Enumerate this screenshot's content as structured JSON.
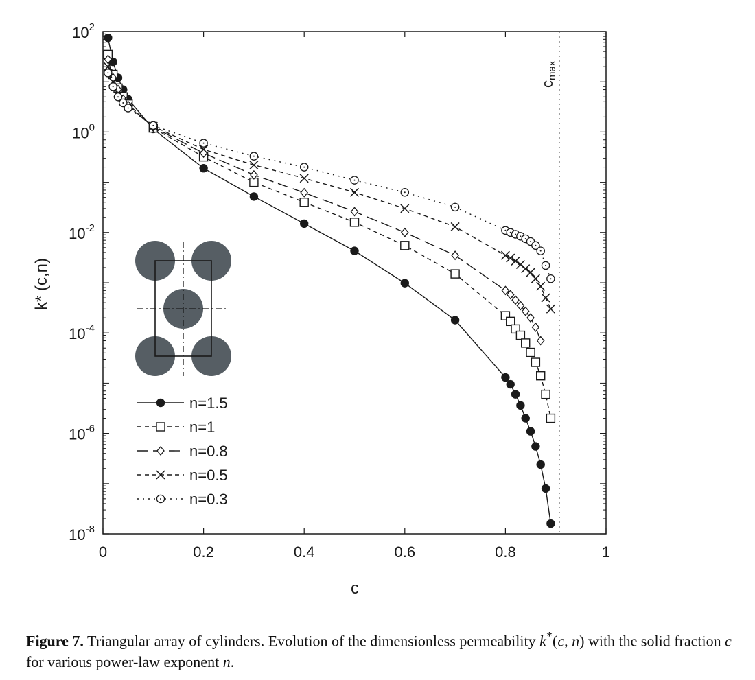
{
  "chart_data": {
    "type": "line",
    "xlabel": "c",
    "ylabel": "k* (c,n)",
    "xlim": [
      0,
      1
    ],
    "ylim": [
      1e-08,
      100
    ],
    "yscale": "log",
    "xticks": [
      {
        "value": 0,
        "label": "0"
      },
      {
        "value": 0.2,
        "label": "0.2"
      },
      {
        "value": 0.4,
        "label": "0.4"
      },
      {
        "value": 0.6,
        "label": "0.6"
      },
      {
        "value": 0.8,
        "label": "0.8"
      },
      {
        "value": 1,
        "label": "1"
      }
    ],
    "yticks": [
      {
        "value": 100,
        "base": "10",
        "exp": "2"
      },
      {
        "value": 1,
        "base": "10",
        "exp": "0"
      },
      {
        "value": 0.01,
        "base": "10",
        "exp": "-2"
      },
      {
        "value": 0.0001,
        "base": "10",
        "exp": "-4"
      },
      {
        "value": 1e-06,
        "base": "10",
        "exp": "-6"
      },
      {
        "value": 1e-08,
        "base": "10",
        "exp": "-8"
      }
    ],
    "annotations": [
      {
        "text": "c",
        "subscript": "max",
        "x": 0.9069,
        "style": "dotted-vertical-line"
      }
    ],
    "legend_position": "lower-left",
    "inset": "triangular array of cylinders (unit cell)",
    "series": [
      {
        "name": "n=1.5",
        "marker": "filled-circle",
        "line": "solid",
        "x": [
          0.01,
          0.02,
          0.03,
          0.04,
          0.05,
          0.1,
          0.2,
          0.3,
          0.4,
          0.5,
          0.6,
          0.7,
          0.8,
          0.81,
          0.82,
          0.83,
          0.84,
          0.85,
          0.86,
          0.87,
          0.88,
          0.89
        ],
        "y": [
          75,
          25,
          12,
          7,
          4.5,
          1.15,
          0.19,
          0.052,
          0.015,
          0.0043,
          0.00098,
          0.00018,
          1.3e-05,
          9.5e-06,
          6e-06,
          3.6e-06,
          2e-06,
          1.1e-06,
          5.5e-07,
          2.4e-07,
          8e-08,
          1.6e-08
        ]
      },
      {
        "name": "n=1",
        "marker": "open-square",
        "line": "short-dash",
        "x": [
          0.01,
          0.02,
          0.03,
          0.04,
          0.05,
          0.1,
          0.2,
          0.3,
          0.4,
          0.5,
          0.6,
          0.7,
          0.8,
          0.81,
          0.82,
          0.83,
          0.84,
          0.85,
          0.86,
          0.87,
          0.88,
          0.89
        ],
        "y": [
          35,
          14,
          7.5,
          5,
          3.6,
          1.2,
          0.32,
          0.1,
          0.04,
          0.016,
          0.0055,
          0.0015,
          0.00022,
          0.00017,
          0.00012,
          9e-05,
          6.3e-05,
          4.1e-05,
          2.6e-05,
          1.4e-05,
          6e-06,
          2e-06
        ]
      },
      {
        "name": "n=0.8",
        "marker": "open-diamond",
        "line": "long-dash",
        "x": [
          0.01,
          0.02,
          0.03,
          0.04,
          0.05,
          0.1,
          0.2,
          0.3,
          0.4,
          0.5,
          0.6,
          0.7,
          0.8,
          0.81,
          0.82,
          0.83,
          0.84,
          0.85,
          0.86,
          0.87
        ],
        "y": [
          28,
          12,
          7,
          4.5,
          3.4,
          1.25,
          0.38,
          0.14,
          0.062,
          0.026,
          0.01,
          0.0035,
          0.0007,
          0.00058,
          0.00045,
          0.00035,
          0.00027,
          0.0002,
          0.00013,
          7e-05
        ]
      },
      {
        "name": "n=0.5",
        "marker": "cross",
        "line": "short-dash",
        "x": [
          0.01,
          0.02,
          0.03,
          0.04,
          0.05,
          0.1,
          0.2,
          0.3,
          0.4,
          0.5,
          0.6,
          0.7,
          0.8,
          0.81,
          0.82,
          0.83,
          0.84,
          0.85,
          0.86,
          0.87,
          0.88,
          0.89
        ],
        "y": [
          20,
          10,
          6,
          4.2,
          3.2,
          1.3,
          0.45,
          0.22,
          0.12,
          0.063,
          0.03,
          0.013,
          0.0035,
          0.0031,
          0.0027,
          0.0023,
          0.0019,
          0.0016,
          0.0012,
          0.00085,
          0.0005,
          0.0003
        ]
      },
      {
        "name": "n=0.3",
        "marker": "open-circle-dot",
        "line": "dotted",
        "x": [
          0.01,
          0.02,
          0.03,
          0.04,
          0.05,
          0.1,
          0.2,
          0.3,
          0.4,
          0.5,
          0.6,
          0.7,
          0.8,
          0.81,
          0.82,
          0.83,
          0.84,
          0.85,
          0.86,
          0.87,
          0.88,
          0.89
        ],
        "y": [
          15,
          8,
          5,
          3.8,
          3,
          1.35,
          0.6,
          0.33,
          0.2,
          0.11,
          0.063,
          0.032,
          0.011,
          0.01,
          0.0092,
          0.0084,
          0.0075,
          0.0066,
          0.0055,
          0.0043,
          0.0022,
          0.0012
        ]
      }
    ]
  },
  "caption": {
    "label": "Figure 7.",
    "text_1": " Triangular array of cylinders. Evolution of the dimensionless permeability ",
    "formula_k": "k",
    "formula_star": "*",
    "formula_open": "(",
    "formula_c": "c",
    "formula_comma": ", ",
    "formula_n": "n",
    "formula_close": ")",
    "text_2": " with the solid fraction ",
    "c_var": "c",
    "text_3": " for various power-law exponent ",
    "n_var": "n",
    "text_4": "."
  },
  "colors": {
    "ink": "#1a1a1a",
    "cylinder": "#565e64"
  }
}
